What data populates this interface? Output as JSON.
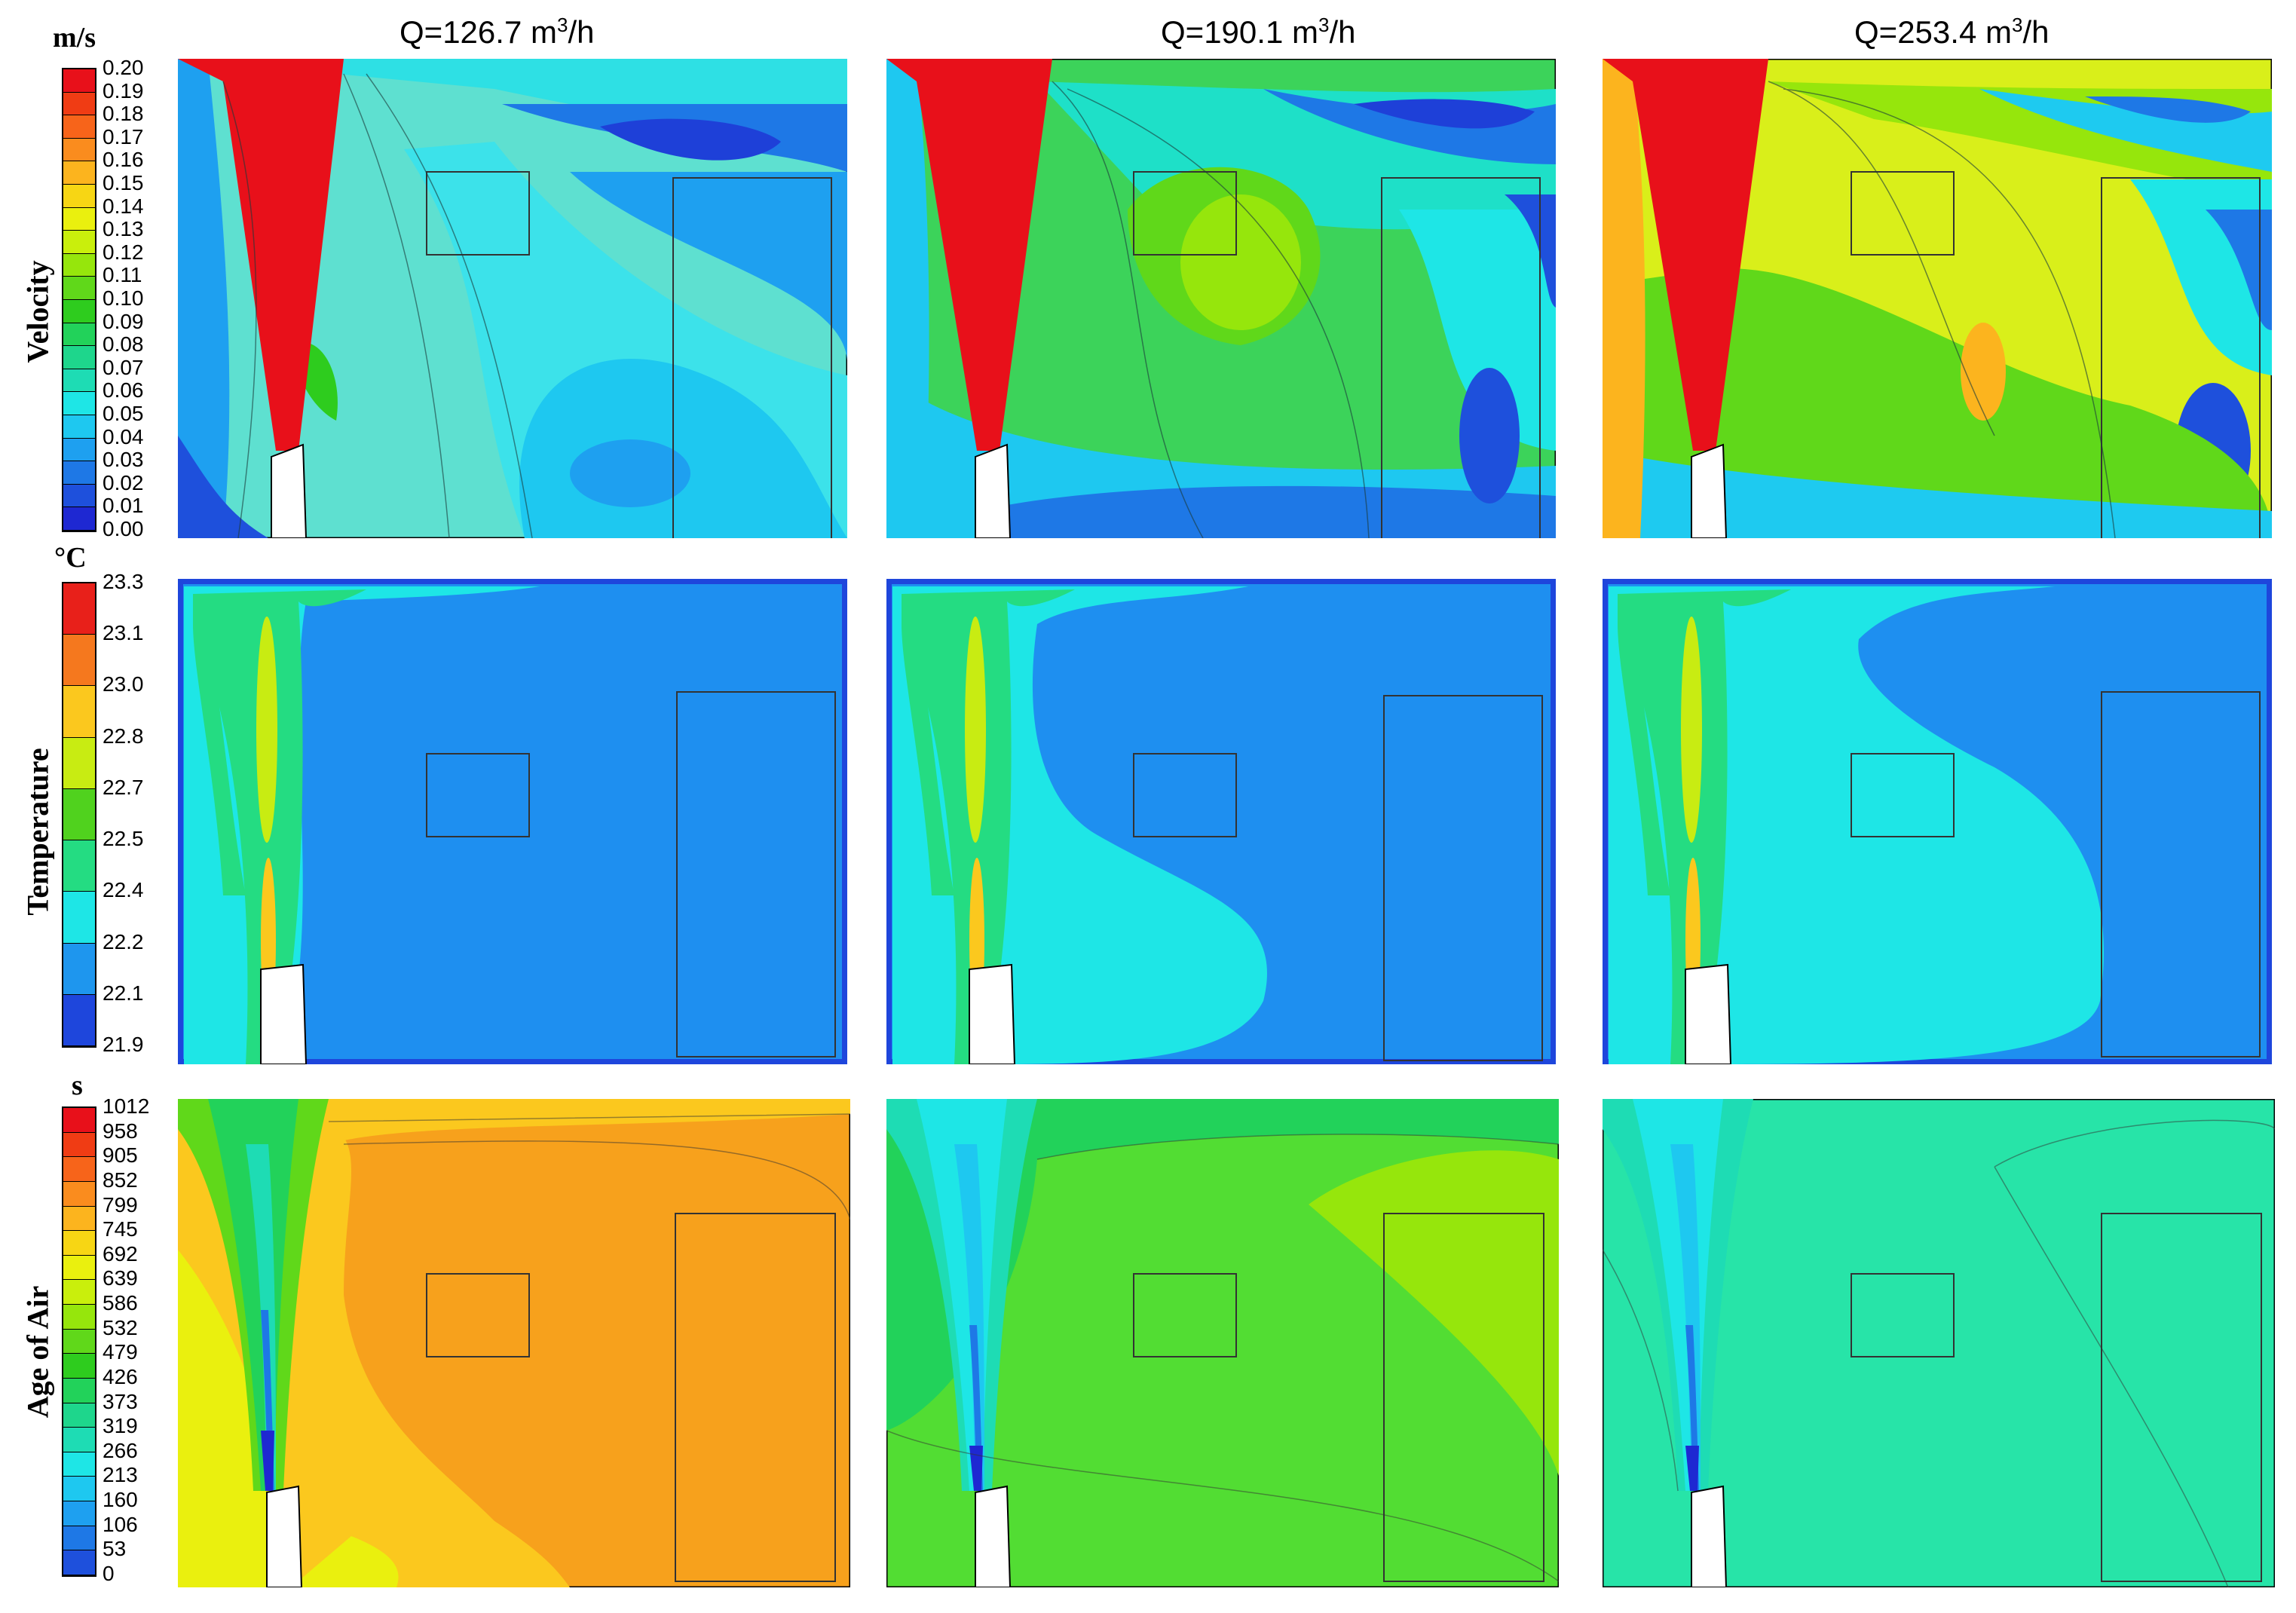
{
  "columns": [
    {
      "title_base": "Q=126.7 m",
      "title_sup": "3",
      "title_tail": "/h"
    },
    {
      "title_base": "Q=190.1 m",
      "title_sup": "3",
      "title_tail": "/h"
    },
    {
      "title_base": "Q=253.4 m",
      "title_sup": "3",
      "title_tail": "/h"
    }
  ],
  "rows": [
    {
      "label": "Velocity",
      "unit": "m/s",
      "ticks": [
        "0.20",
        "0.19",
        "0.18",
        "0.17",
        "0.16",
        "0.15",
        "0.14",
        "0.13",
        "0.12",
        "0.11",
        "0.10",
        "0.09",
        "0.08",
        "0.07",
        "0.06",
        "0.05",
        "0.04",
        "0.03",
        "0.02",
        "0.01",
        "0.00"
      ],
      "colors": [
        "#e8101a",
        "#f03c14",
        "#f7641a",
        "#fa8c1e",
        "#fcb41e",
        "#f7d614",
        "#eaf00e",
        "#c9ef0c",
        "#96e60c",
        "#60d81a",
        "#2ecc1e",
        "#22d25a",
        "#1ed68c",
        "#1edcb4",
        "#1ee6e6",
        "#1ec8f0",
        "#1ea0f0",
        "#1e78e6",
        "#1e50dc",
        "#1e28d2"
      ]
    },
    {
      "label": "Temperature",
      "unit": "°C",
      "ticks": [
        "23.3",
        "23.1",
        "23.0",
        "22.8",
        "22.7",
        "22.5",
        "22.4",
        "22.2",
        "22.1",
        "21.9"
      ],
      "colors": [
        "#e8201a",
        "#f5781e",
        "#fbc81e",
        "#c8ec12",
        "#50d21e",
        "#24dc82",
        "#1ee6e6",
        "#1e96ee",
        "#1e46dc"
      ]
    },
    {
      "label": "Age of Air",
      "unit": "s",
      "ticks": [
        "1012",
        "958",
        "905",
        "852",
        "799",
        "745",
        "692",
        "639",
        "586",
        "532",
        "479",
        "426",
        "373",
        "319",
        "266",
        "213",
        "160",
        "106",
        "53",
        "0"
      ],
      "colors": [
        "#e8101a",
        "#f03c14",
        "#f7641a",
        "#fa8c1e",
        "#fcb41e",
        "#f7d614",
        "#eaf00e",
        "#c9ef0c",
        "#96e60c",
        "#60d81a",
        "#2ecc1e",
        "#22d25a",
        "#1ed68c",
        "#1edcb4",
        "#1ee6e6",
        "#1ec8f0",
        "#1ea0f0",
        "#1e78e6",
        "#1e50dc"
      ]
    }
  ],
  "panel_fills": {
    "velocity": [
      "#5ee0d0",
      "#3cd35a",
      "#d9ef1a"
    ],
    "temperature": [
      "#1e8ff0",
      "#1e8ff0",
      "#1e8ff0"
    ],
    "age_of_air": [
      "#f7a11c",
      "#52dd33",
      "#27e4a8"
    ]
  }
}
